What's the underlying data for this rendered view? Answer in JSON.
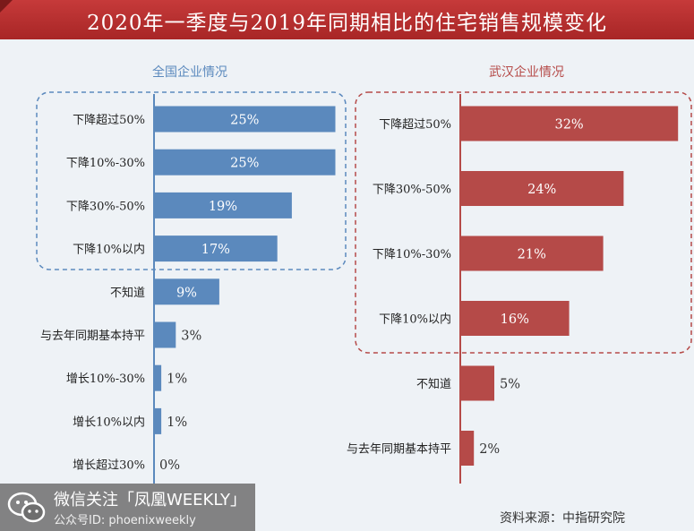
{
  "title": "2020年一季度与2019年同期相比的住宅销售规模变化",
  "source": "资料来源：中指研究院",
  "watermark": {
    "line1": "微信关注「凤凰WEEKLY」",
    "line2": "公众号ID: phoenixweekly"
  },
  "colors": {
    "national": "#5b89bd",
    "wuhan": "#b54a48",
    "title_bg": "#b83030"
  },
  "chart_data": [
    {
      "type": "bar",
      "orientation": "horizontal",
      "title": "全国企业情况",
      "categories": [
        "下降超过50%",
        "下降10%-30%",
        "下降30%-50%",
        "下降10%以内",
        "不知道",
        "与去年同期基本持平",
        "增长10%-30%",
        "增长10%以内",
        "增长超过30%"
      ],
      "values": [
        25,
        25,
        19,
        17,
        9,
        3,
        1,
        1,
        0
      ],
      "labels": [
        "25%",
        "25%",
        "19%",
        "17%",
        "9%",
        "3%",
        "1%",
        "1%",
        "0%"
      ],
      "highlight_group": 4,
      "unit": "%"
    },
    {
      "type": "bar",
      "orientation": "horizontal",
      "title": "武汉企业情况",
      "categories": [
        "下降超过50%",
        "下降30%-50%",
        "下降10%-30%",
        "下降10%以内",
        "不知道",
        "与去年同期基本持平"
      ],
      "values": [
        32,
        24,
        21,
        16,
        5,
        2
      ],
      "labels": [
        "32%",
        "24%",
        "21%",
        "16%",
        "5%",
        "2%"
      ],
      "highlight_group": 4,
      "unit": "%"
    }
  ]
}
